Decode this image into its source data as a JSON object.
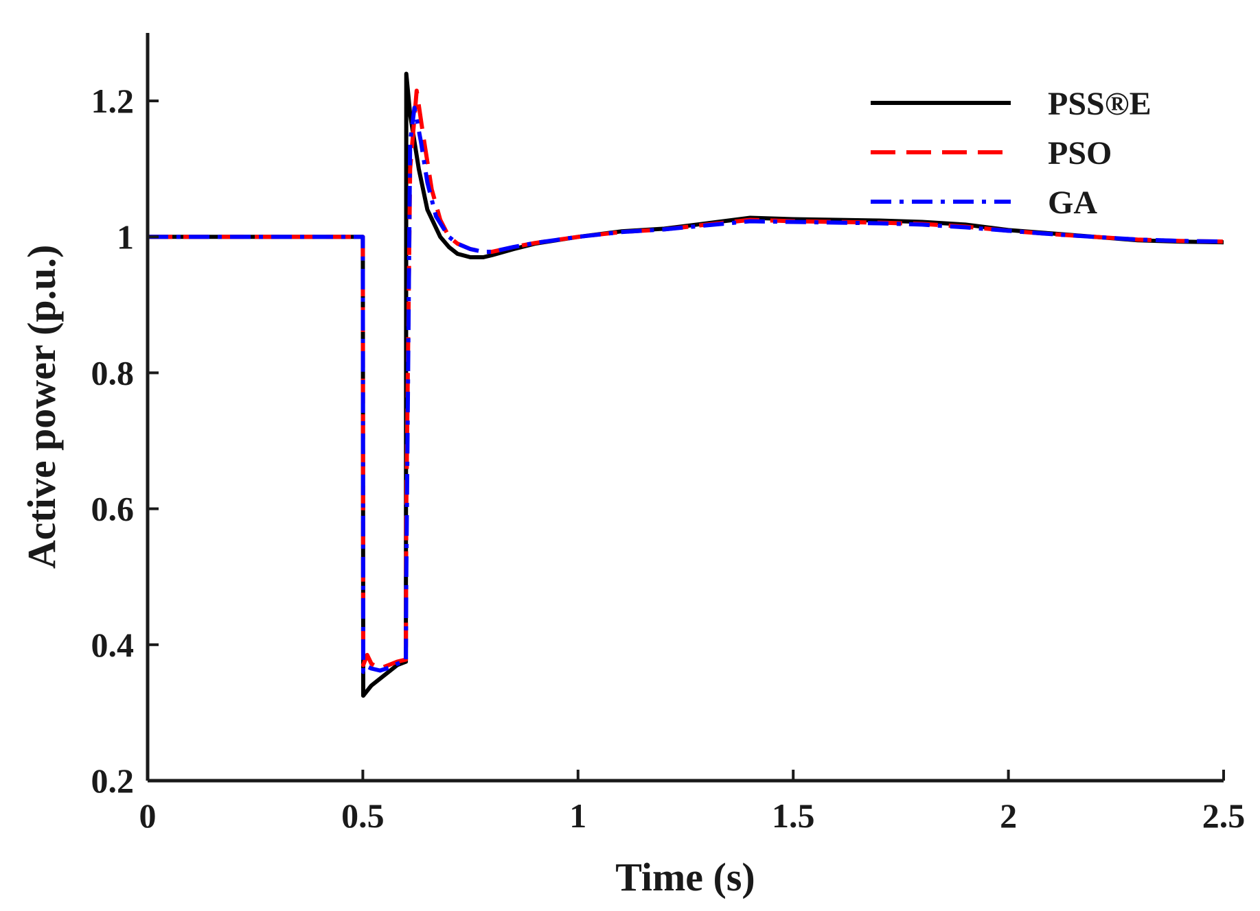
{
  "chart_data": {
    "type": "line",
    "title": "",
    "xlabel": "Time (s)",
    "ylabel": "Active power (p.u.)",
    "xlim": [
      0,
      2.5
    ],
    "ylim": [
      0.2,
      1.3
    ],
    "xticks": [
      0,
      0.5,
      1,
      1.5,
      2,
      2.5
    ],
    "xtick_labels": [
      "0",
      "0.5",
      "1",
      "1.5",
      "2",
      "2.5"
    ],
    "yticks": [
      0.2,
      0.4,
      0.6,
      0.8,
      1.0,
      1.2
    ],
    "ytick_labels": [
      "0.2",
      "0.4",
      "0.6",
      "0.8",
      "1",
      "1.2"
    ],
    "grid": false,
    "legend_position": "top-right",
    "series": [
      {
        "name": "PSS®E",
        "color": "#000000",
        "style": "solid",
        "x": [
          0,
          0.5,
          0.501,
          0.52,
          0.55,
          0.58,
          0.6,
          0.601,
          0.61,
          0.63,
          0.65,
          0.68,
          0.7,
          0.72,
          0.75,
          0.78,
          0.8,
          0.85,
          0.9,
          1.0,
          1.1,
          1.2,
          1.3,
          1.4,
          1.5,
          1.6,
          1.7,
          1.8,
          1.9,
          2.0,
          2.1,
          2.2,
          2.3,
          2.4,
          2.5
        ],
        "y": [
          1.0,
          1.0,
          0.325,
          0.34,
          0.355,
          0.37,
          0.375,
          1.24,
          1.18,
          1.1,
          1.04,
          1.0,
          0.985,
          0.975,
          0.97,
          0.97,
          0.973,
          0.982,
          0.99,
          1.0,
          1.008,
          1.012,
          1.02,
          1.028,
          1.026,
          1.025,
          1.024,
          1.022,
          1.018,
          1.01,
          1.005,
          1.0,
          0.995,
          0.993,
          0.992
        ]
      },
      {
        "name": "PSO",
        "color": "#ff0000",
        "style": "dashed",
        "x": [
          0,
          0.5,
          0.501,
          0.51,
          0.52,
          0.54,
          0.56,
          0.58,
          0.6,
          0.601,
          0.61,
          0.625,
          0.64,
          0.66,
          0.68,
          0.7,
          0.72,
          0.75,
          0.78,
          0.8,
          0.85,
          0.9,
          1.0,
          1.1,
          1.2,
          1.3,
          1.4,
          1.5,
          1.6,
          1.7,
          1.8,
          1.9,
          2.0,
          2.1,
          2.2,
          2.3,
          2.4,
          2.5
        ],
        "y": [
          1.0,
          1.0,
          0.37,
          0.385,
          0.372,
          0.365,
          0.37,
          0.375,
          0.378,
          0.6,
          1.1,
          1.215,
          1.15,
          1.07,
          1.025,
          1.0,
          0.99,
          0.982,
          0.978,
          0.978,
          0.985,
          0.991,
          1.0,
          1.007,
          1.011,
          1.018,
          1.025,
          1.023,
          1.022,
          1.021,
          1.019,
          1.015,
          1.009,
          1.004,
          1.0,
          0.996,
          0.994,
          0.993
        ]
      },
      {
        "name": "GA",
        "color": "#0000ff",
        "style": "dashdot",
        "x": [
          0,
          0.5,
          0.501,
          0.51,
          0.52,
          0.54,
          0.56,
          0.58,
          0.6,
          0.601,
          0.61,
          0.62,
          0.635,
          0.65,
          0.67,
          0.7,
          0.72,
          0.75,
          0.78,
          0.8,
          0.85,
          0.9,
          1.0,
          1.1,
          1.2,
          1.3,
          1.4,
          1.5,
          1.6,
          1.7,
          1.8,
          1.9,
          2.0,
          2.1,
          2.2,
          2.3,
          2.4,
          2.5
        ],
        "y": [
          1.0,
          1.0,
          0.36,
          0.368,
          0.365,
          0.362,
          0.366,
          0.372,
          0.376,
          0.5,
          1.14,
          1.19,
          1.14,
          1.08,
          1.03,
          1.0,
          0.99,
          0.982,
          0.978,
          0.978,
          0.985,
          0.991,
          1.0,
          1.007,
          1.011,
          1.017,
          1.023,
          1.022,
          1.021,
          1.02,
          1.018,
          1.014,
          1.009,
          1.004,
          1.0,
          0.996,
          0.994,
          0.993
        ]
      }
    ]
  }
}
